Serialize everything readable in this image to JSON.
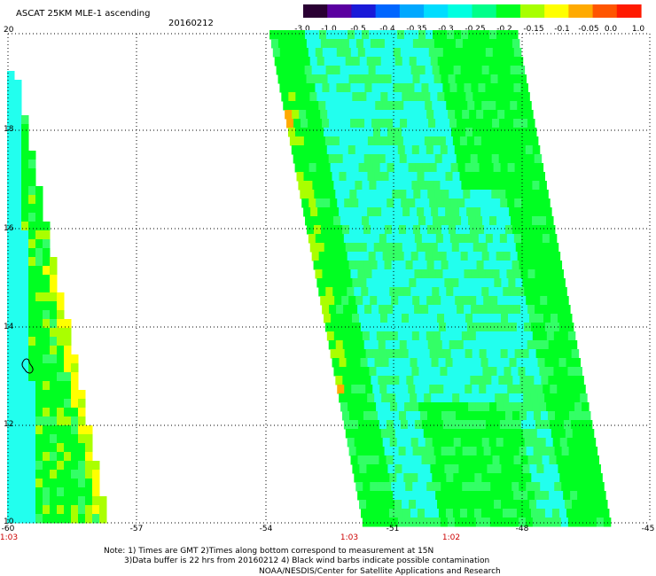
{
  "header": {
    "title": "ASCAT 25KM MLE-1 ascending",
    "date": "20160212"
  },
  "colorbar": {
    "labels": [
      "-3.0",
      "-1.0",
      "-0.5",
      "-0.4",
      "-0.35",
      "-0.3",
      "-0.25",
      "-0.2",
      "-0.15",
      "-0.1",
      "-0.05",
      "0.0",
      "1.0"
    ],
    "colors": [
      "#2a0033",
      "#5a00a0",
      "#1a1ad8",
      "#0066ff",
      "#00a8ff",
      "#00ddff",
      "#00ffe0",
      "#00ff8a",
      "#00ff20",
      "#a8ff00",
      "#ffff00",
      "#ffaa00",
      "#ff5500",
      "#ff1a00"
    ]
  },
  "axes": {
    "x_ticks": [
      "-60",
      "-57",
      "-54",
      "-51",
      "-48",
      "-45"
    ],
    "y_ticks": [
      "20",
      "18",
      "16",
      "14",
      "12",
      "10"
    ],
    "time_labels": [
      "1:03",
      "1:03",
      "1:02"
    ]
  },
  "notes": {
    "line1": "Note: 1) Times are GMT 2)Times along bottom correspond to measurement at 15N",
    "line2": "3)Data buffer is 22 hrs from 20160212 4) Black wind barbs indicate possible contamination",
    "line3": "NOAA/NESDIS/Center for Satellite Applications and Research"
  },
  "palette": {
    "cyan": "#22ffee",
    "light_green": "#33ff66",
    "green": "#00ff22",
    "yellow_green": "#aaff00",
    "yellow": "#ffff00",
    "orange": "#ffaa00"
  }
}
